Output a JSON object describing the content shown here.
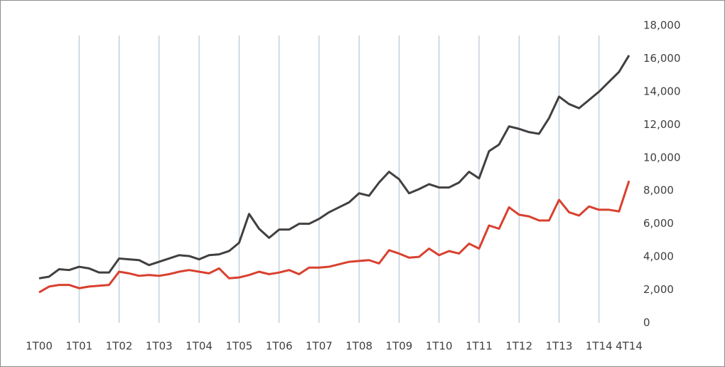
{
  "chart_data": {
    "type": "line",
    "categories": [
      "1T00",
      null,
      null,
      null,
      "1T01",
      null,
      null,
      null,
      "1T02",
      null,
      null,
      null,
      "1T03",
      null,
      null,
      null,
      "1T04",
      null,
      null,
      null,
      "1T05",
      null,
      null,
      null,
      "1T06",
      null,
      null,
      null,
      "1T07",
      null,
      null,
      null,
      "1T08",
      null,
      null,
      null,
      "1T09",
      null,
      null,
      null,
      "1T10",
      null,
      null,
      null,
      "1T11",
      null,
      null,
      null,
      "1T12",
      null,
      null,
      null,
      "1T13",
      null,
      null,
      null,
      "1T14",
      null,
      null,
      "4T14"
    ],
    "series": [
      {
        "color": "#404040",
        "values": [
          2700,
          2800,
          3250,
          3200,
          3400,
          3300,
          3050,
          3050,
          3900,
          3850,
          3800,
          3500,
          3700,
          3900,
          4100,
          4050,
          3850,
          4100,
          4150,
          4350,
          4850,
          6600,
          5700,
          5150,
          5650,
          5650,
          6000,
          6000,
          6300,
          6700,
          7000,
          7300,
          7850,
          7700,
          8500,
          9150,
          8700,
          7850,
          8100,
          8400,
          8200,
          8200,
          8500,
          9150,
          8750,
          10400,
          10800,
          11900,
          11750,
          11550,
          11450,
          12400,
          13700,
          13250,
          13000,
          13500,
          14000,
          14600,
          15200,
          16200
        ]
      },
      {
        "color": "#d9402f",
        "values": [
          1850,
          2200,
          2300,
          2300,
          2100,
          2200,
          2250,
          2300,
          3100,
          3000,
          2850,
          2900,
          2850,
          2950,
          3100,
          3200,
          3100,
          3000,
          3300,
          2700,
          2750,
          2900,
          3100,
          2950,
          3050,
          3200,
          2950,
          3350,
          3350,
          3400,
          3550,
          3700,
          3750,
          3800,
          3600,
          4400,
          4200,
          3950,
          4000,
          4500,
          4100,
          4350,
          4200,
          4800,
          4500,
          5900,
          5700,
          7000,
          6550,
          6450,
          6200,
          6200,
          7450,
          6700,
          6500,
          7050,
          6850,
          6850,
          6750,
          8600
        ]
      }
    ],
    "ylim": [
      0,
      18000
    ],
    "yticks": [
      0,
      {
        "value": 2000,
        "label": "2,000"
      },
      {
        "value": 4000,
        "label": "4,000"
      },
      {
        "value": 6000,
        "label": "6,000"
      },
      {
        "value": 8000,
        "label": "8,000"
      },
      {
        "value": 10000,
        "label": "10,000"
      },
      {
        "value": 12000,
        "label": "12,000"
      },
      {
        "value": 14000,
        "label": "14,000"
      },
      {
        "value": 16000,
        "label": "16,000"
      },
      {
        "value": 18000,
        "label": "18,000"
      }
    ],
    "xgrid": true
  }
}
